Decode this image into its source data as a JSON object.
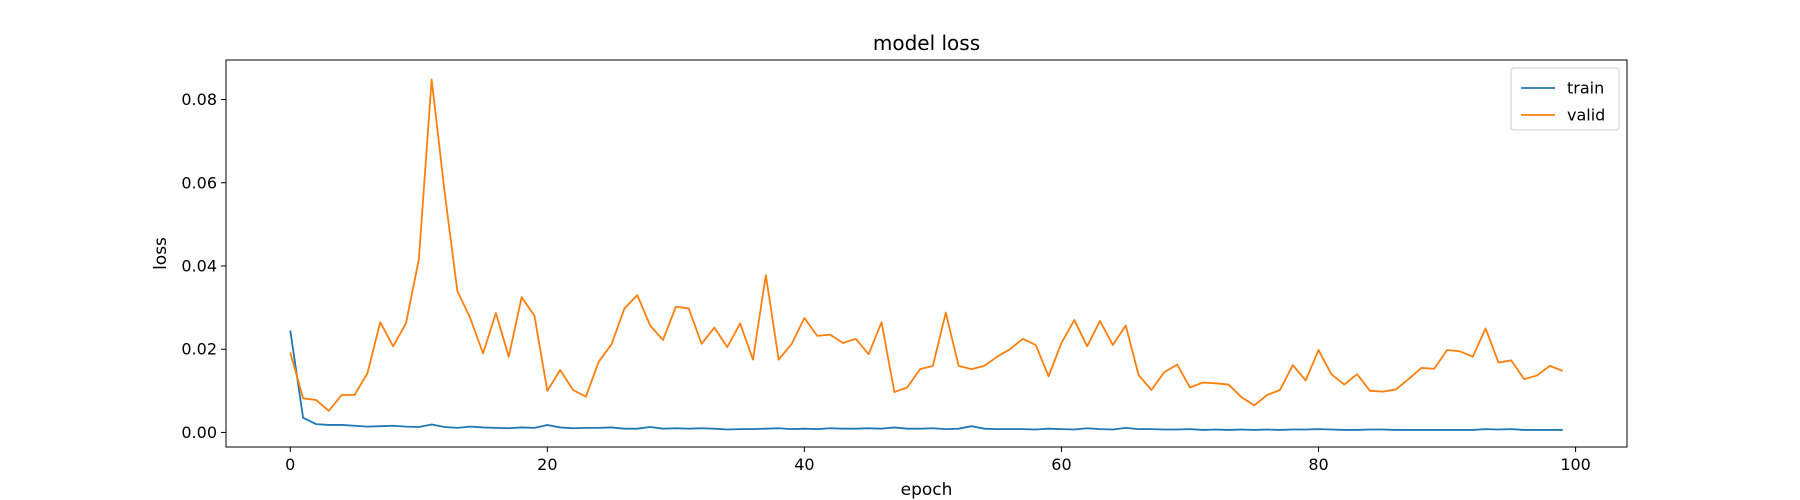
{
  "chart_data": {
    "type": "line",
    "title": "model loss",
    "xlabel": "epoch",
    "ylabel": "loss",
    "xlim": [
      -5,
      104
    ],
    "ylim": [
      -0.0035,
      0.0895
    ],
    "xticks": [
      0,
      20,
      40,
      60,
      80,
      100
    ],
    "yticks": [
      0.0,
      0.02,
      0.04,
      0.06,
      0.08
    ],
    "xtick_labels": [
      "0",
      "20",
      "40",
      "60",
      "80",
      "100"
    ],
    "ytick_labels": [
      "0.00",
      "0.02",
      "0.04",
      "0.06",
      "0.08"
    ],
    "grid": false,
    "legend": "top-right",
    "series": [
      {
        "name": "train",
        "color": "#1f77b4",
        "values": [
          0.0245,
          0.0035,
          0.002,
          0.0018,
          0.0018,
          0.0016,
          0.0014,
          0.0015,
          0.0016,
          0.0014,
          0.0013,
          0.0019,
          0.0013,
          0.0011,
          0.0014,
          0.0012,
          0.0011,
          0.001,
          0.0012,
          0.0011,
          0.0018,
          0.0012,
          0.001,
          0.0011,
          0.0011,
          0.0012,
          0.0009,
          0.0009,
          0.0013,
          0.0009,
          0.001,
          0.0009,
          0.001,
          0.0009,
          0.0007,
          0.0008,
          0.0008,
          0.0009,
          0.001,
          0.0008,
          0.0009,
          0.0008,
          0.001,
          0.0009,
          0.0009,
          0.001,
          0.0009,
          0.0012,
          0.0009,
          0.0009,
          0.001,
          0.0008,
          0.0009,
          0.0015,
          0.0009,
          0.0008,
          0.0008,
          0.0008,
          0.0007,
          0.0009,
          0.0008,
          0.0007,
          0.001,
          0.0008,
          0.0007,
          0.0011,
          0.0008,
          0.0008,
          0.0007,
          0.0007,
          0.0008,
          0.0006,
          0.0007,
          0.0006,
          0.0007,
          0.0006,
          0.0007,
          0.0006,
          0.0007,
          0.0007,
          0.0008,
          0.0007,
          0.0006,
          0.0006,
          0.0007,
          0.0007,
          0.0006,
          0.0006,
          0.0006,
          0.0006,
          0.0006,
          0.0006,
          0.0006,
          0.0008,
          0.0007,
          0.0008,
          0.0006,
          0.0006,
          0.0006,
          0.0006
        ]
      },
      {
        "name": "valid",
        "color": "#ff7f0e",
        "values": [
          0.0192,
          0.0082,
          0.0078,
          0.0052,
          0.009,
          0.009,
          0.0142,
          0.0265,
          0.0207,
          0.0262,
          0.0415,
          0.0848,
          0.058,
          0.034,
          0.0275,
          0.019,
          0.0287,
          0.0182,
          0.0325,
          0.028,
          0.01,
          0.015,
          0.0102,
          0.0086,
          0.017,
          0.0212,
          0.0298,
          0.033,
          0.0257,
          0.0222,
          0.0302,
          0.0298,
          0.0213,
          0.0252,
          0.0205,
          0.0262,
          0.0175,
          0.0378,
          0.0175,
          0.0212,
          0.0275,
          0.0232,
          0.0235,
          0.0215,
          0.0225,
          0.0188,
          0.0265,
          0.0097,
          0.0108,
          0.0152,
          0.016,
          0.0288,
          0.016,
          0.0152,
          0.016,
          0.0182,
          0.02,
          0.0225,
          0.021,
          0.0135,
          0.0215,
          0.027,
          0.0207,
          0.0268,
          0.021,
          0.0257,
          0.0138,
          0.0102,
          0.0145,
          0.0163,
          0.0108,
          0.012,
          0.0118,
          0.0115,
          0.0085,
          0.0065,
          0.009,
          0.0102,
          0.0162,
          0.0125,
          0.0198,
          0.014,
          0.0115,
          0.014,
          0.01,
          0.0098,
          0.0103,
          0.0128,
          0.0155,
          0.0153,
          0.0198,
          0.0195,
          0.0182,
          0.025,
          0.0168,
          0.0173,
          0.0128,
          0.0137,
          0.016,
          0.0148
        ]
      }
    ]
  }
}
